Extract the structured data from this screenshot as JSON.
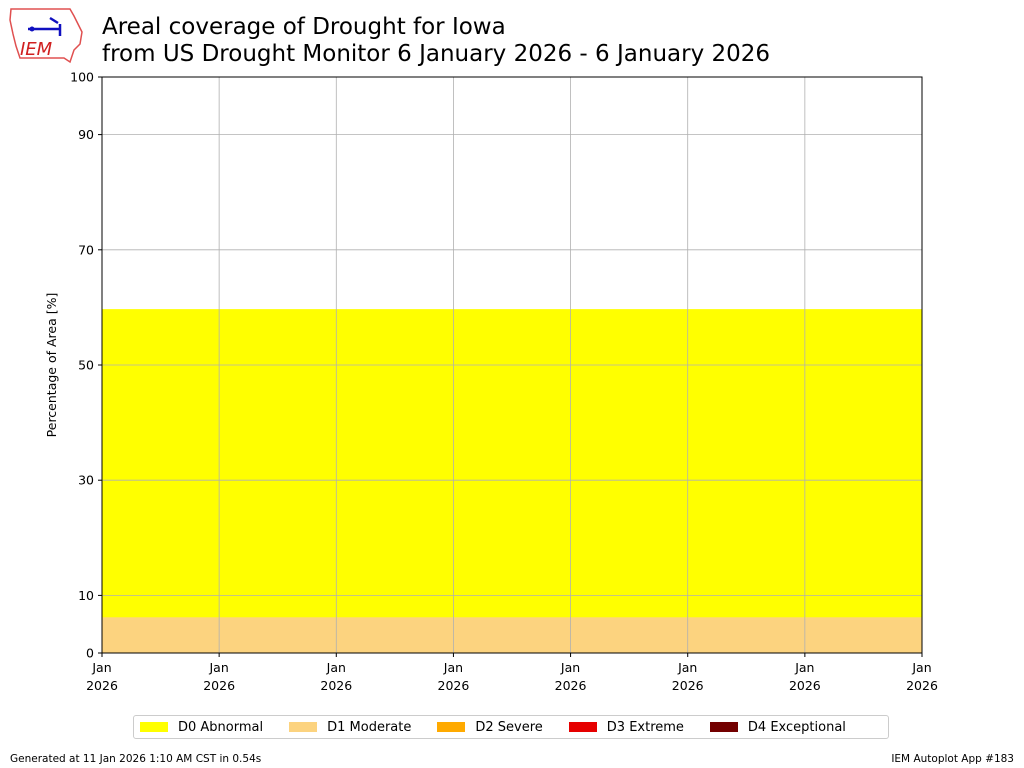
{
  "chart_data": {
    "type": "area",
    "title_line1": "Areal coverage of Drought for Iowa",
    "title_line2": "from US Drought Monitor 6 January 2026 - 6 January 2026",
    "ylabel": "Percentage of Area [%]",
    "xlabel": "",
    "ylim": [
      0,
      100
    ],
    "yticks": [
      0,
      10,
      30,
      50,
      70,
      90,
      100
    ],
    "xtick_labels": [
      [
        "Jan",
        "2026"
      ],
      [
        "Jan",
        "2026"
      ],
      [
        "Jan",
        "2026"
      ],
      [
        "Jan",
        "2026"
      ],
      [
        "Jan",
        "2026"
      ],
      [
        "Jan",
        "2026"
      ],
      [
        "Jan",
        "2026"
      ],
      [
        "Jan",
        "2026"
      ]
    ],
    "grid": true,
    "legend_placement": "bottom-center",
    "series": [
      {
        "name": "D0 Abnormal",
        "color": "#FFFF00",
        "value": 59.7
      },
      {
        "name": "D1 Moderate",
        "color": "#FCD37F",
        "value": 6.2
      },
      {
        "name": "D2 Severe",
        "color": "#FFAA00",
        "value": 0
      },
      {
        "name": "D3 Extreme",
        "color": "#E60000",
        "value": 0
      },
      {
        "name": "D4 Exceptional",
        "color": "#730000",
        "value": 0
      }
    ]
  },
  "logo_text": "IEM",
  "footer": {
    "left": "Generated at 11 Jan 2026 1:10 AM CST in 0.54s",
    "right": "IEM Autoplot App #183"
  }
}
